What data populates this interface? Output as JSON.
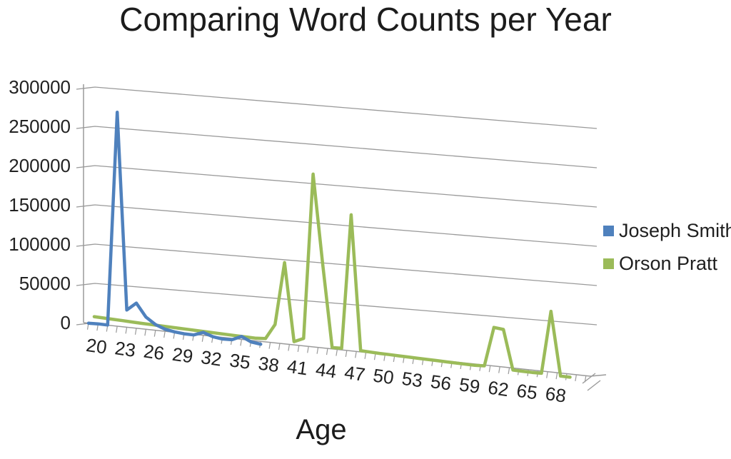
{
  "title": "Comparing Word Counts per Year",
  "x_axis_title": "Age",
  "legend": {
    "position": "right",
    "items": [
      {
        "label": "Joseph Smith",
        "color": "#4f81bd"
      },
      {
        "label": "Orson Pratt",
        "color": "#9bbb59"
      }
    ]
  },
  "chart_data": {
    "type": "line",
    "style": "3d-perspective-line",
    "title": "Comparing Word Counts per Year",
    "xlabel": "Age",
    "ylabel": "",
    "ylim": [
      0,
      300000
    ],
    "y_ticks": [
      0,
      50000,
      100000,
      150000,
      200000,
      250000,
      300000
    ],
    "y_tick_labels": [
      "0",
      "50000",
      "100000",
      "150000",
      "200000",
      "250000",
      "300000"
    ],
    "x_range": [
      20,
      70
    ],
    "x_tick_step": 3,
    "x_tick_labels": [
      "20",
      "23",
      "26",
      "29",
      "32",
      "35",
      "38",
      "41",
      "44",
      "47",
      "50",
      "53",
      "56",
      "59",
      "62",
      "65",
      "68"
    ],
    "grid": true,
    "legend_position": "right",
    "series": [
      {
        "name": "Joseph Smith",
        "color": "#4f81bd",
        "age_start": 20,
        "ages": [
          20,
          21,
          22,
          23,
          24,
          25,
          26,
          27,
          28,
          29,
          30,
          31,
          32,
          33,
          34,
          35,
          36,
          37,
          38
        ],
        "values": [
          2000,
          2500,
          2500,
          270000,
          24000,
          34000,
          18000,
          10000,
          5500,
          3500,
          2500,
          2500,
          7000,
          3000,
          1500,
          2000,
          7500,
          2000,
          500
        ]
      },
      {
        "name": "Orson Pratt",
        "color": "#9bbb59",
        "age_start": 20,
        "ages": [
          20,
          21,
          22,
          23,
          24,
          25,
          26,
          27,
          28,
          29,
          30,
          31,
          32,
          33,
          34,
          35,
          36,
          37,
          38,
          39,
          40,
          41,
          42,
          43,
          44,
          45,
          46,
          47,
          48,
          49,
          50,
          51,
          52,
          53,
          54,
          55,
          56,
          57,
          58,
          59,
          60,
          61,
          62,
          63,
          64,
          65,
          66,
          67,
          68,
          69,
          70
        ],
        "values": [
          3000,
          2800,
          2600,
          2400,
          2200,
          2000,
          1900,
          1800,
          1700,
          1600,
          1500,
          1400,
          1300,
          1200,
          1100,
          1000,
          1000,
          1000,
          2000,
          21000,
          100000,
          2500,
          8000,
          215000,
          105000,
          1000,
          1500,
          170000,
          1500,
          1200,
          1000,
          1000,
          900,
          900,
          800,
          800,
          800,
          700,
          700,
          700,
          700,
          1500,
          51000,
          50000,
          700,
          600,
          600,
          1000,
          80000,
          500,
          500
        ]
      }
    ]
  }
}
